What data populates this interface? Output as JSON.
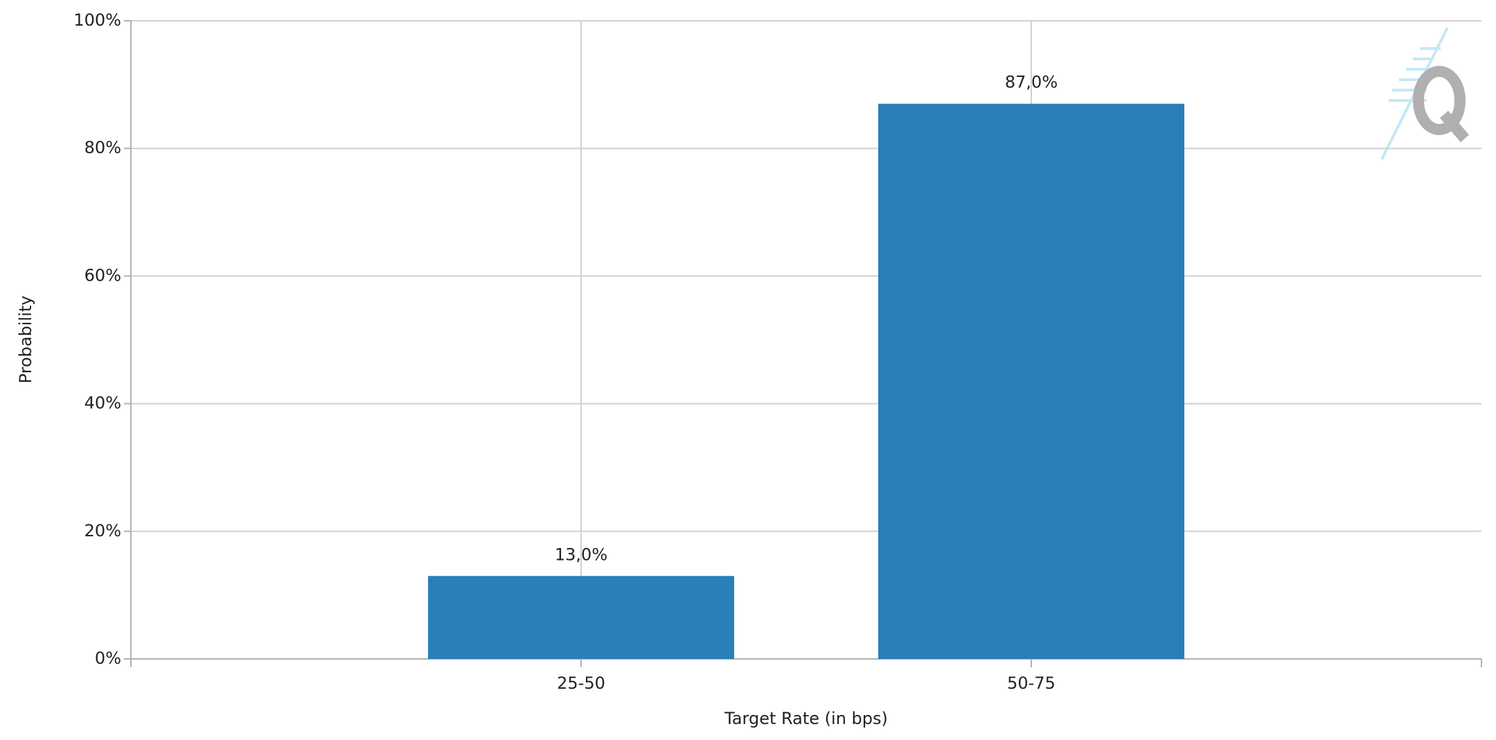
{
  "chart_data": {
    "type": "bar",
    "x_label": "Target Rate (in bps)",
    "y_label": "Probability",
    "categories": [
      "25-50",
      "50-75"
    ],
    "values": [
      13,
      87
    ],
    "value_labels": [
      "13,0%",
      "87,0%"
    ],
    "color": "#2a7fb8",
    "ylim": [
      0,
      100
    ],
    "yticks": [
      {
        "value": 0,
        "label": "0%"
      },
      {
        "value": 20,
        "label": "20%"
      },
      {
        "value": 40,
        "label": "40%"
      },
      {
        "value": 60,
        "label": "60%"
      },
      {
        "value": 80,
        "label": "80%"
      },
      {
        "value": 100,
        "label": "100%"
      }
    ],
    "grid": true
  }
}
